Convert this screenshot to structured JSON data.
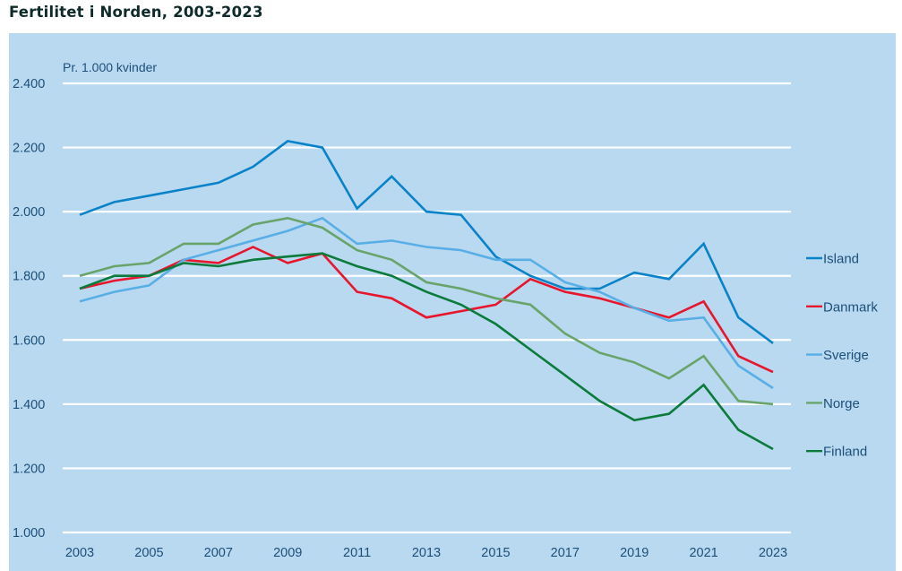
{
  "chart_data": {
    "type": "line",
    "title": "Fertilitet i Norden, 2003-2023",
    "unit_label": "Pr. 1.000 kvinder",
    "xlabel": "",
    "ylabel": "Pr. 1.000 kvinder",
    "x": [
      2003,
      2004,
      2005,
      2006,
      2007,
      2008,
      2009,
      2010,
      2011,
      2012,
      2013,
      2014,
      2015,
      2016,
      2017,
      2018,
      2019,
      2020,
      2021,
      2022,
      2023
    ],
    "xticks": [
      "2003",
      "2005",
      "2007",
      "2009",
      "2011",
      "2013",
      "2015",
      "2017",
      "2019",
      "2021",
      "2023"
    ],
    "xtick_values": [
      2003,
      2005,
      2007,
      2009,
      2011,
      2013,
      2015,
      2017,
      2019,
      2021,
      2023
    ],
    "ylim": [
      1000,
      2400
    ],
    "yticks": [
      "1.000",
      "1.200",
      "1.400",
      "1.600",
      "1.800",
      "2.000",
      "2.200",
      "2.400"
    ],
    "ytick_values": [
      1000,
      1200,
      1400,
      1600,
      1800,
      2000,
      2200,
      2400
    ],
    "grid": true,
    "legend_position": "right",
    "series": [
      {
        "name": "Island",
        "color": "#0a82c8",
        "values": [
          1990,
          2030,
          2050,
          2070,
          2090,
          2140,
          2220,
          2200,
          2010,
          2110,
          2000,
          1990,
          1860,
          1800,
          1760,
          1760,
          1810,
          1790,
          1900,
          1670,
          1590
        ]
      },
      {
        "name": "Danmark",
        "color": "#e8162c",
        "values": [
          1760,
          1785,
          1800,
          1850,
          1840,
          1890,
          1840,
          1870,
          1750,
          1730,
          1670,
          1690,
          1710,
          1790,
          1750,
          1730,
          1700,
          1670,
          1720,
          1550,
          1500
        ]
      },
      {
        "name": "Sverige",
        "color": "#5aaee6",
        "values": [
          1720,
          1750,
          1770,
          1850,
          1880,
          1910,
          1940,
          1980,
          1900,
          1910,
          1890,
          1880,
          1850,
          1850,
          1780,
          1750,
          1700,
          1660,
          1670,
          1520,
          1450
        ]
      },
      {
        "name": "Norge",
        "color": "#68a46a",
        "values": [
          1800,
          1830,
          1840,
          1900,
          1900,
          1960,
          1980,
          1950,
          1880,
          1850,
          1780,
          1760,
          1730,
          1710,
          1620,
          1560,
          1530,
          1480,
          1550,
          1410,
          1400
        ]
      },
      {
        "name": "Finland",
        "color": "#0b7a3a",
        "values": [
          1760,
          1800,
          1800,
          1840,
          1830,
          1850,
          1860,
          1870,
          1830,
          1800,
          1750,
          1710,
          1650,
          1570,
          1490,
          1410,
          1350,
          1370,
          1460,
          1320,
          1260
        ]
      }
    ]
  }
}
